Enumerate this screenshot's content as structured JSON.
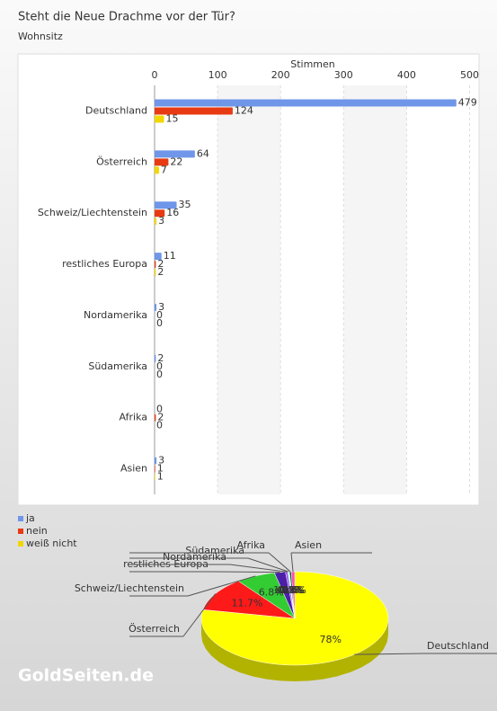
{
  "title": "Steht die Neue Drachme vor der Tür?",
  "subtitle": "Wohnsitz",
  "watermark": "GoldSeiten.de",
  "chart_data": [
    {
      "type": "bar",
      "orientation": "horizontal",
      "x_label": "Stimmen",
      "categories": [
        "Deutschland",
        "Österreich",
        "Schweiz/Liechtenstein",
        "restliches Europa",
        "Nordamerika",
        "Südamerika",
        "Afrika",
        "Asien"
      ],
      "series": [
        {
          "name": "ja",
          "color": "#6f96e8",
          "values": [
            479,
            64,
            35,
            11,
            3,
            2,
            0,
            3
          ]
        },
        {
          "name": "nein",
          "color": "#e83a12",
          "values": [
            124,
            22,
            16,
            2,
            0,
            0,
            2,
            1
          ]
        },
        {
          "name": "weiß nicht",
          "color": "#f2d600",
          "values": [
            15,
            7,
            3,
            2,
            0,
            0,
            0,
            1
          ]
        }
      ],
      "xlim": [
        0,
        515
      ],
      "xticks": [
        0,
        100,
        200,
        300,
        400,
        500
      ],
      "grid": true,
      "legend": "bottom-left"
    },
    {
      "type": "pie",
      "categories": [
        "Deutschland",
        "Österreich",
        "Schweiz/Liechtenstein",
        "restliches Europa",
        "Nordamerika",
        "Südamerika",
        "Afrika",
        "Asien"
      ],
      "values": [
        78,
        11.7,
        6.8,
        1.9,
        0.4,
        0.3,
        0.3,
        0.6
      ],
      "value_labels": [
        "78%",
        "11.7%",
        "6.8%",
        "1.9%",
        "0.4%",
        "0.3%",
        "0.3%",
        "0.6%"
      ],
      "colors": [
        "#ffff00",
        "#ff1a1a",
        "#33cc33",
        "#4b1fa8",
        "#9b4de8",
        "#b3ffff",
        "#0d4d26",
        "#ff4db8"
      ]
    }
  ]
}
